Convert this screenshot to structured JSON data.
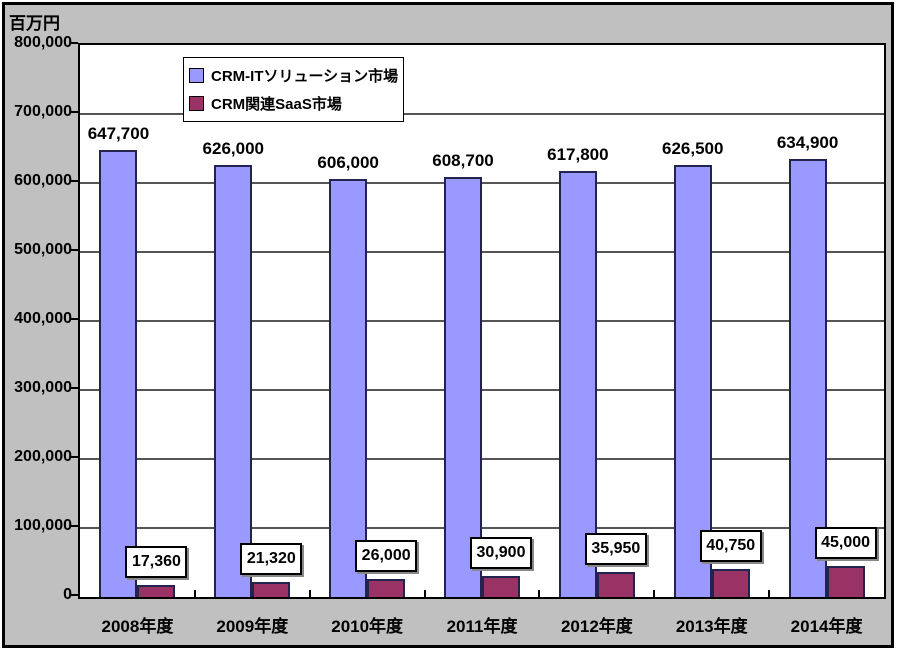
{
  "unit_label": "百万円",
  "chart_data": {
    "type": "bar",
    "title": "",
    "unit": "百万円",
    "categories": [
      "2008年度",
      "2009年度",
      "2010年度",
      "2011年度",
      "2012年度",
      "2013年度",
      "2014年度"
    ],
    "series": [
      {
        "name": "CRM-ITソリューション市場",
        "color": "#9999FF",
        "values": [
          647700,
          626000,
          606000,
          608700,
          617800,
          626500,
          634900
        ],
        "value_labels": [
          "647,700",
          "626,000",
          "606,000",
          "608,700",
          "617,800",
          "626,500",
          "634,900"
        ]
      },
      {
        "name": "CRM関連SaaS市場",
        "color": "#993366",
        "values": [
          17360,
          21320,
          26000,
          30900,
          35950,
          40750,
          45000
        ],
        "value_labels": [
          "17,360",
          "21,320",
          "26,000",
          "30,900",
          "35,950",
          "40,750",
          "45,000"
        ]
      }
    ],
    "ylim": [
      0,
      800000
    ],
    "y_tick_interval": 100000,
    "y_tick_labels": [
      "800,000",
      "700,000",
      "600,000",
      "500,000",
      "400,000",
      "300,000",
      "200,000",
      "100,000",
      "0"
    ],
    "grid": true,
    "legend_position": "top-inside-left"
  },
  "colors": {
    "chart_background": "#C0C0C0",
    "plot_background": "#FFFFFF",
    "series1": "#9999FF",
    "series2": "#993366",
    "gridline": "#555555",
    "border": "#000000"
  }
}
